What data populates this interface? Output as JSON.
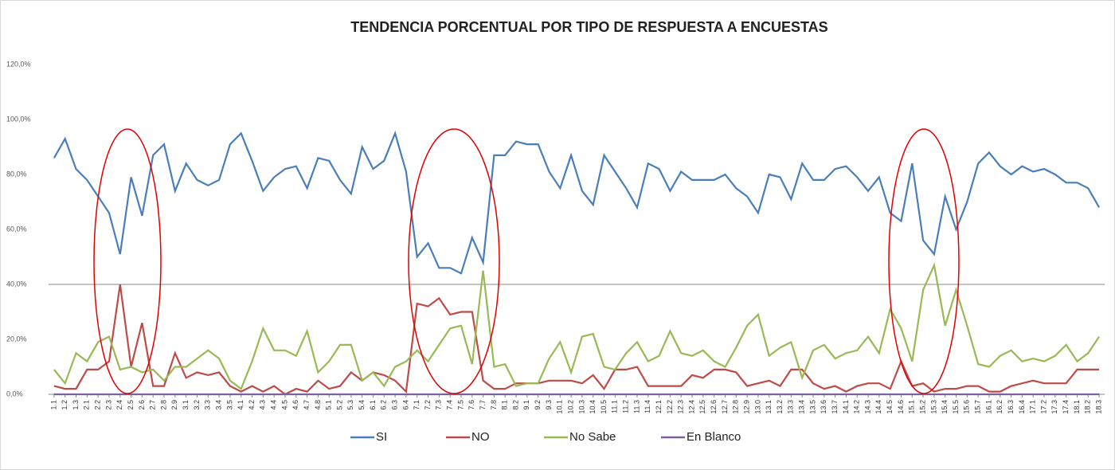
{
  "chart_data": {
    "type": "line",
    "title": "TENDENCIA PORCENTUAL POR TIPO DE RESPUESTA A ENCUESTAS",
    "categories": [
      "1.1",
      "1.2",
      "1.3",
      "2.1",
      "2.2",
      "2.3",
      "2.4",
      "2.5",
      "2.6",
      "2.7",
      "2.8",
      "2.9",
      "3.1",
      "3.2",
      "3.3",
      "3.4",
      "3.5",
      "4.1",
      "4.2",
      "4.3",
      "4.4",
      "4.5",
      "4.6",
      "4.7",
      "4.8",
      "5.1",
      "5.2",
      "5.3",
      "5.4",
      "6.1",
      "6.2",
      "6.3",
      "6.4",
      "7.1",
      "7.2",
      "7.3",
      "7.4",
      "7.5",
      "7.6",
      "7.7",
      "7.8",
      "8.1",
      "8.2",
      "9.1",
      "9.2",
      "9.3",
      "10.1",
      "10.2",
      "10.3",
      "10.4",
      "10.5",
      "11.1",
      "11.2",
      "11.3",
      "11.4",
      "12.1",
      "12.2",
      "12.3",
      "12.4",
      "12.5",
      "12.6",
      "12.7",
      "12.8",
      "12.9",
      "13.0",
      "13.1",
      "13.2",
      "13.3",
      "13.4",
      "13.5",
      "13.6",
      "13.7",
      "14.1",
      "14.2",
      "14.3",
      "14.4",
      "14.5",
      "14.6",
      "15.1",
      "15.2",
      "15.3",
      "15.4",
      "15.5",
      "15.6",
      "15.7",
      "16.1",
      "16.2",
      "16.3",
      "16.4",
      "17.1",
      "17.2",
      "17.3",
      "17.4",
      "18.1",
      "18.2",
      "18.3"
    ],
    "series": [
      {
        "name": "SI",
        "color": "#4a7ebb",
        "values": [
          86,
          93,
          82,
          78,
          72,
          66,
          51,
          79,
          65,
          87,
          91,
          74,
          84,
          78,
          76,
          78,
          91,
          95,
          85,
          74,
          79,
          82,
          83,
          75,
          86,
          85,
          78,
          73,
          90,
          82,
          85,
          95,
          81,
          50,
          55,
          46,
          46,
          44,
          57,
          48,
          87,
          87,
          92,
          91,
          91,
          81,
          75,
          87,
          74,
          69,
          87,
          81,
          75,
          68,
          84,
          82,
          74,
          81,
          78,
          78,
          78,
          80,
          75,
          72,
          66,
          80,
          79,
          71,
          84,
          78,
          78,
          82,
          83,
          79,
          74,
          79,
          66,
          63,
          84,
          56,
          51,
          72,
          60,
          70,
          84,
          88,
          83,
          80,
          83,
          81,
          82,
          80,
          77,
          77,
          75,
          68
        ]
      },
      {
        "name": "NO",
        "color": "#be4b48",
        "values": [
          3,
          2,
          2,
          9,
          9,
          12,
          40,
          10,
          26,
          3,
          3,
          15,
          6,
          8,
          7,
          8,
          3,
          1,
          3,
          1,
          3,
          0,
          2,
          1,
          5,
          2,
          3,
          8,
          5,
          8,
          7,
          5,
          1,
          33,
          32,
          35,
          29,
          30,
          30,
          5,
          2,
          2,
          4,
          4,
          4,
          5,
          5,
          5,
          4,
          7,
          2,
          9,
          9,
          10,
          3,
          3,
          3,
          3,
          7,
          6,
          9,
          9,
          8,
          3,
          4,
          5,
          3,
          9,
          9,
          4,
          2,
          3,
          1,
          3,
          4,
          4,
          2,
          12,
          3,
          4,
          1,
          2,
          2,
          3,
          3,
          1,
          1,
          3,
          4,
          5,
          4,
          4,
          4,
          9,
          9,
          9
        ]
      },
      {
        "name": "No Sabe",
        "color": "#98b954",
        "values": [
          9,
          4,
          15,
          12,
          19,
          21,
          9,
          10,
          8,
          9,
          5,
          10,
          10,
          13,
          16,
          13,
          5,
          2,
          12,
          24,
          16,
          16,
          14,
          23,
          8,
          12,
          18,
          18,
          5,
          8,
          3,
          10,
          12,
          16,
          12,
          18,
          24,
          25,
          11,
          45,
          10,
          11,
          3,
          4,
          4,
          13,
          19,
          8,
          21,
          22,
          10,
          9,
          15,
          19,
          12,
          14,
          23,
          15,
          14,
          16,
          12,
          10,
          17,
          25,
          29,
          14,
          17,
          19,
          6,
          16,
          18,
          13,
          15,
          16,
          21,
          15,
          31,
          24,
          12,
          38,
          47,
          25,
          38,
          25,
          11,
          10,
          14,
          16,
          12,
          13,
          12,
          14,
          18,
          12,
          15,
          21
        ]
      },
      {
        "name": "En Blanco",
        "color": "#7d60a0",
        "values": [
          0,
          0,
          0,
          0,
          0,
          0,
          0,
          0,
          0,
          0,
          0,
          0,
          0,
          0,
          0,
          0,
          0,
          0,
          0,
          0,
          0,
          0,
          0,
          0,
          0,
          0,
          0,
          0,
          0,
          0,
          0,
          0,
          0,
          0,
          0,
          0,
          0,
          0,
          0,
          0,
          0,
          0,
          0,
          0,
          0,
          0,
          0,
          0,
          0,
          0,
          0,
          0,
          0,
          0,
          0,
          0,
          0,
          0,
          0,
          0,
          0,
          0,
          0,
          0,
          0,
          0,
          0,
          0,
          0,
          0,
          0,
          0,
          0,
          0,
          0,
          0,
          0,
          0,
          0,
          0,
          0,
          0,
          0,
          0,
          0,
          0,
          0,
          0,
          0,
          0,
          0,
          0,
          0,
          0,
          0,
          0
        ]
      }
    ],
    "ylim": [
      0,
      120
    ],
    "yticks": [
      {
        "value": 0,
        "label": "0,0%"
      },
      {
        "value": 20,
        "label": "20,0%"
      },
      {
        "value": 40,
        "label": "40,0%"
      },
      {
        "value": 60,
        "label": "60,0%"
      },
      {
        "value": 80,
        "label": "80,0%"
      },
      {
        "value": 100,
        "label": "100,0%"
      },
      {
        "value": 120,
        "label": "120,0%"
      }
    ],
    "hline": 40,
    "legend": "bottom"
  }
}
